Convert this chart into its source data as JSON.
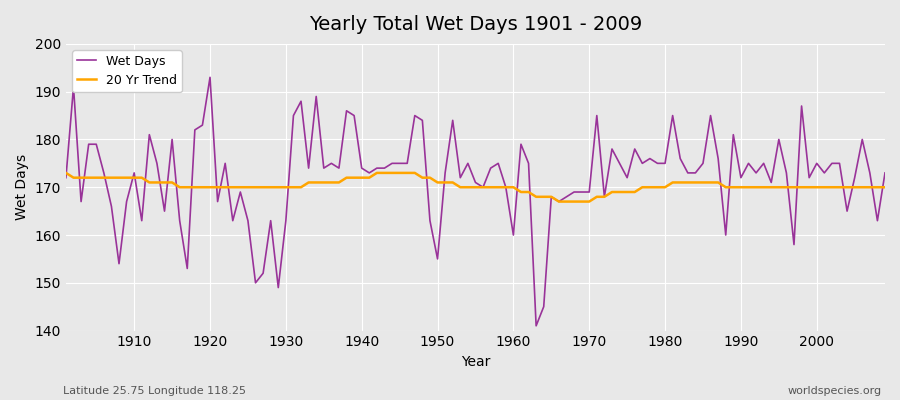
{
  "title": "Yearly Total Wet Days 1901 - 2009",
  "xlabel": "Year",
  "ylabel": "Wet Days",
  "ylim": [
    140,
    200
  ],
  "xlim": [
    1901,
    2009
  ],
  "line_color": "#993399",
  "trend_color": "#FFA500",
  "background_color": "#E8E8E8",
  "grid_color": "#FFFFFF",
  "legend_label_line": "Wet Days",
  "legend_label_trend": "20 Yr Trend",
  "bottom_left_text": "Latitude 25.75 Longitude 118.25",
  "bottom_right_text": "worldspecies.org",
  "years": [
    1901,
    1902,
    1903,
    1904,
    1905,
    1906,
    1907,
    1908,
    1909,
    1910,
    1911,
    1912,
    1913,
    1914,
    1915,
    1916,
    1917,
    1918,
    1919,
    1920,
    1921,
    1922,
    1923,
    1924,
    1925,
    1926,
    1927,
    1928,
    1929,
    1930,
    1931,
    1932,
    1933,
    1934,
    1935,
    1936,
    1937,
    1938,
    1939,
    1940,
    1941,
    1942,
    1943,
    1944,
    1945,
    1946,
    1947,
    1948,
    1949,
    1950,
    1951,
    1952,
    1953,
    1954,
    1955,
    1956,
    1957,
    1958,
    1959,
    1960,
    1961,
    1962,
    1963,
    1964,
    1965,
    1966,
    1967,
    1968,
    1969,
    1970,
    1971,
    1972,
    1973,
    1974,
    1975,
    1976,
    1977,
    1978,
    1979,
    1980,
    1981,
    1982,
    1983,
    1984,
    1985,
    1986,
    1987,
    1988,
    1989,
    1990,
    1991,
    1992,
    1993,
    1994,
    1995,
    1996,
    1997,
    1998,
    1999,
    2000,
    2001,
    2002,
    2003,
    2004,
    2005,
    2006,
    2007,
    2008,
    2009
  ],
  "wet_days": [
    172,
    191,
    167,
    179,
    179,
    173,
    166,
    154,
    167,
    173,
    163,
    181,
    175,
    165,
    180,
    163,
    153,
    182,
    183,
    193,
    167,
    175,
    163,
    169,
    163,
    150,
    152,
    163,
    149,
    163,
    185,
    188,
    174,
    189,
    174,
    175,
    174,
    186,
    185,
    174,
    173,
    174,
    174,
    175,
    175,
    175,
    185,
    184,
    163,
    155,
    173,
    184,
    172,
    175,
    171,
    170,
    174,
    175,
    170,
    160,
    179,
    175,
    141,
    145,
    168,
    167,
    168,
    169,
    169,
    169,
    185,
    168,
    178,
    175,
    172,
    178,
    175,
    176,
    175,
    175,
    185,
    176,
    173,
    173,
    175,
    185,
    176,
    160,
    181,
    172,
    175,
    173,
    175,
    171,
    180,
    173,
    158,
    187,
    172,
    175,
    173,
    175,
    175,
    165,
    172,
    180,
    173,
    163,
    173
  ],
  "trend_start_year": 1901,
  "trend_years": [
    1901,
    1902,
    1903,
    1904,
    1905,
    1906,
    1907,
    1908,
    1909,
    1910,
    1911,
    1912,
    1913,
    1914,
    1915,
    1916,
    1917,
    1918,
    1919,
    1920,
    1921,
    1922,
    1923,
    1924,
    1925,
    1926,
    1927,
    1928,
    1929,
    1930,
    1931,
    1932,
    1933,
    1934,
    1935,
    1936,
    1937,
    1938,
    1939,
    1940,
    1941,
    1942,
    1943,
    1944,
    1945,
    1946,
    1947,
    1948,
    1949,
    1950,
    1951,
    1952,
    1953,
    1954,
    1955,
    1956,
    1957,
    1958,
    1959,
    1960,
    1961,
    1962,
    1963,
    1964,
    1965,
    1966,
    1967,
    1968,
    1969,
    1970,
    1971,
    1972,
    1973,
    1974,
    1975,
    1976,
    1977,
    1978,
    1979,
    1980,
    1981,
    1982,
    1983,
    1984,
    1985,
    1986,
    1987,
    1988,
    1989,
    1990,
    1991,
    1992,
    1993,
    1994,
    1995,
    1996,
    1997,
    1998,
    1999,
    2000,
    2001,
    2002,
    2003,
    2004,
    2005,
    2006,
    2007,
    2008,
    2009
  ],
  "trend_values": [
    173,
    172,
    172,
    172,
    172,
    172,
    172,
    172,
    172,
    172,
    172,
    171,
    171,
    171,
    171,
    170,
    170,
    170,
    170,
    170,
    170,
    170,
    170,
    170,
    170,
    170,
    170,
    170,
    170,
    170,
    170,
    170,
    171,
    171,
    171,
    171,
    171,
    172,
    172,
    172,
    172,
    173,
    173,
    173,
    173,
    173,
    173,
    172,
    172,
    171,
    171,
    171,
    170,
    170,
    170,
    170,
    170,
    170,
    170,
    170,
    169,
    169,
    168,
    168,
    168,
    167,
    167,
    167,
    167,
    167,
    168,
    168,
    169,
    169,
    169,
    169,
    170,
    170,
    170,
    170,
    171,
    171,
    171,
    171,
    171,
    171,
    171,
    170,
    170,
    170,
    170,
    170,
    170,
    170,
    170,
    170,
    170,
    170,
    170,
    170,
    170,
    170,
    170,
    170,
    170,
    170,
    170,
    170,
    170
  ]
}
